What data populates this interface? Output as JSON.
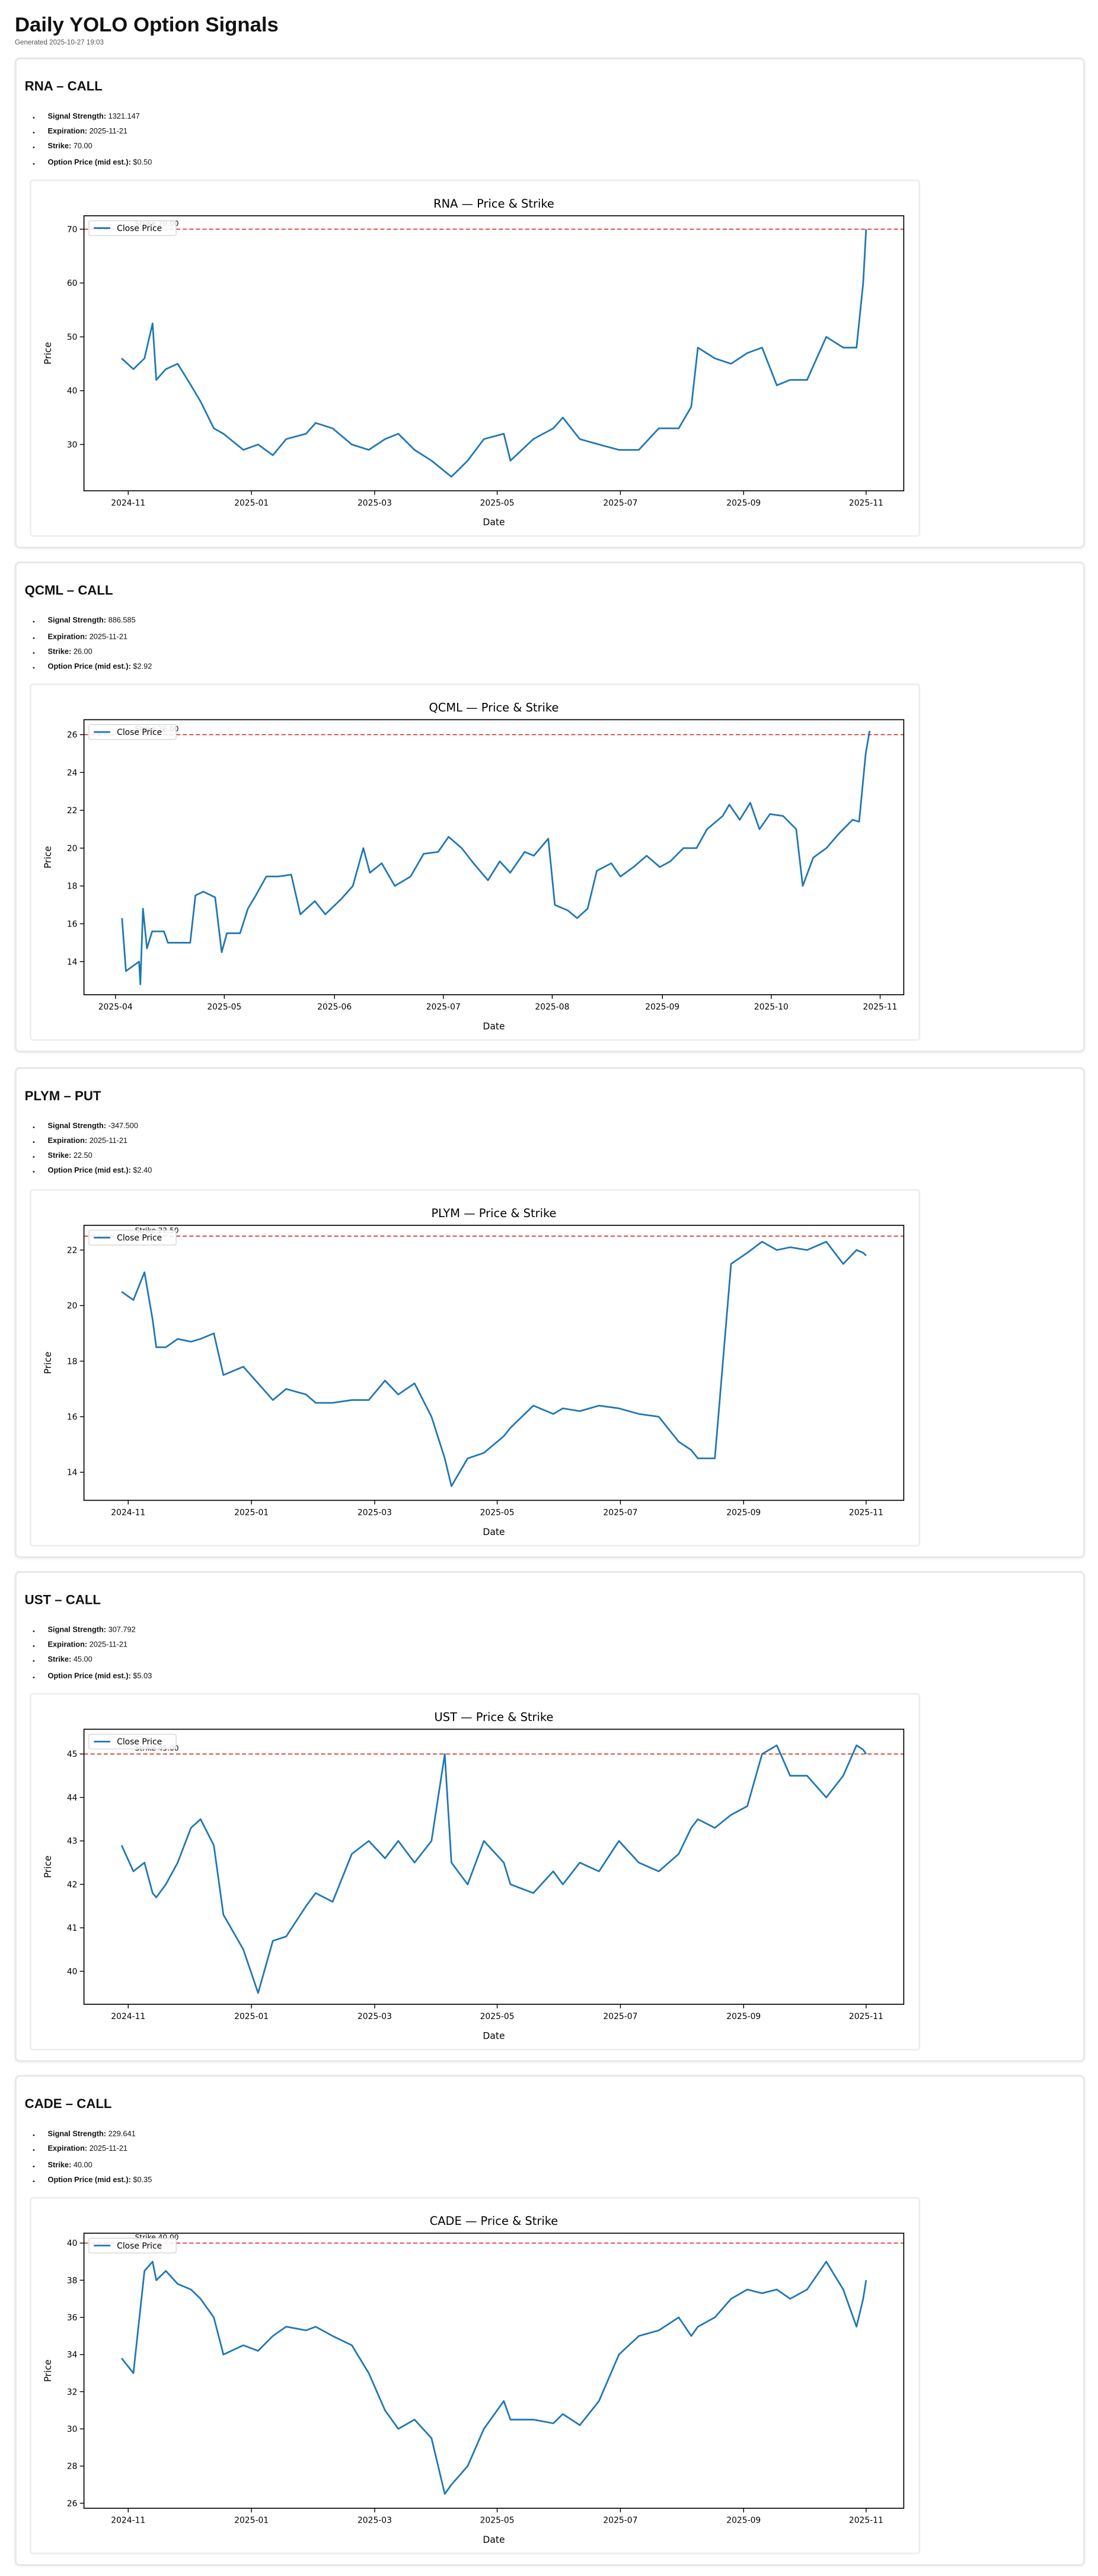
{
  "header": {
    "title": "Daily YOLO Option Signals",
    "generated": "Generated 2025-10-27 19:03"
  },
  "signals": [
    {
      "heading": "RNA – CALL",
      "details": [
        {
          "label": "Signal Strength:",
          "value": "1321.147"
        },
        {
          "label": "Expiration:",
          "value": "2025-11-21"
        },
        {
          "label": "Strike:",
          "value": "70.00"
        },
        {
          "label": "Option Price (mid est.):",
          "value": "$0.50"
        }
      ]
    },
    {
      "heading": "QCML – CALL",
      "details": [
        {
          "label": "Signal Strength:",
          "value": "886.585"
        },
        {
          "label": "Expiration:",
          "value": "2025-11-21"
        },
        {
          "label": "Strike:",
          "value": "26.00"
        },
        {
          "label": "Option Price (mid est.):",
          "value": "$2.92"
        }
      ]
    },
    {
      "heading": "PLYM – PUT",
      "details": [
        {
          "label": "Signal Strength:",
          "value": "-347.500"
        },
        {
          "label": "Expiration:",
          "value": "2025-11-21"
        },
        {
          "label": "Strike:",
          "value": "22.50"
        },
        {
          "label": "Option Price (mid est.):",
          "value": "$2.40"
        }
      ]
    },
    {
      "heading": "UST – CALL",
      "details": [
        {
          "label": "Signal Strength:",
          "value": "307.792"
        },
        {
          "label": "Expiration:",
          "value": "2025-11-21"
        },
        {
          "label": "Strike:",
          "value": "45.00"
        },
        {
          "label": "Option Price (mid est.):",
          "value": "$5.03"
        }
      ]
    },
    {
      "heading": "CADE – CALL",
      "details": [
        {
          "label": "Signal Strength:",
          "value": "229.641"
        },
        {
          "label": "Expiration:",
          "value": "2025-11-21"
        },
        {
          "label": "Strike:",
          "value": "40.00"
        },
        {
          "label": "Option Price (mid est.):",
          "value": "$0.35"
        }
      ]
    }
  ],
  "chart_data": [
    {
      "type": "line",
      "title": "RNA — Price & Strike",
      "xlabel": "Date",
      "ylabel": "Price",
      "legend": "upper left",
      "x": [
        2024.824,
        2024.84,
        2024.855,
        2024.866,
        2024.871,
        2024.884,
        2024.9,
        2024.918,
        2024.931,
        2024.949,
        2024.962,
        2024.989,
        2025.009,
        2025.029,
        2025.047,
        2025.074,
        2025.087,
        2025.11,
        2025.136,
        2025.159,
        2025.181,
        2025.199,
        2025.221,
        2025.244,
        2025.262,
        2025.271,
        2025.293,
        2025.315,
        2025.342,
        2025.351,
        2025.382,
        2025.409,
        2025.422,
        2025.445,
        2025.471,
        2025.498,
        2025.525,
        2025.552,
        2025.579,
        2025.596,
        2025.605,
        2025.628,
        2025.65,
        2025.672,
        2025.692,
        2025.712,
        2025.73,
        2025.753,
        2025.779,
        2025.802,
        2025.82,
        2025.829,
        2025.833
      ],
      "series": [
        {
          "name": "Close Price",
          "color": "#1f77b4",
          "values": [
            46,
            44,
            46,
            52.5,
            42,
            44,
            45,
            41,
            38,
            33,
            32,
            29,
            30,
            28,
            31,
            32,
            34,
            33,
            30,
            29,
            31,
            32,
            29,
            27,
            25,
            24,
            27,
            31,
            32,
            27,
            31,
            33,
            35,
            31,
            30,
            29,
            29,
            33,
            33,
            37,
            48,
            46,
            45,
            47,
            48,
            41,
            42,
            42,
            50,
            48,
            48,
            60,
            70
          ]
        }
      ],
      "hline": {
        "value": 70,
        "label": "Strike 70.00",
        "color": "#d62728"
      },
      "xlim": [
        2024.773,
        2025.884
      ],
      "ylim": [
        21.4,
        72.5
      ],
      "xticks": [
        {
          "value": 2024.833,
          "label": "2024-11"
        },
        {
          "value": 2025.0,
          "label": "2025-01"
        },
        {
          "value": 2025.167,
          "label": "2025-03"
        },
        {
          "value": 2025.333,
          "label": "2025-05"
        },
        {
          "value": 2025.5,
          "label": "2025-07"
        },
        {
          "value": 2025.667,
          "label": "2025-09"
        },
        {
          "value": 2025.833,
          "label": "2025-11"
        }
      ],
      "yticks": [
        30,
        40,
        50,
        60,
        70
      ]
    },
    {
      "type": "line",
      "title": "QCML — Price & Strike",
      "xlabel": "Date",
      "ylabel": "Price",
      "legend": "upper left",
      "x": [
        2025.255,
        2025.258,
        2025.264,
        2025.268,
        2025.269,
        2025.271,
        2025.274,
        2025.278,
        2025.287,
        2025.29,
        2025.299,
        2025.307,
        2025.311,
        2025.317,
        2025.326,
        2025.331,
        2025.335,
        2025.345,
        2025.351,
        2025.357,
        2025.365,
        2025.374,
        2025.384,
        2025.391,
        2025.402,
        2025.41,
        2025.422,
        2025.431,
        2025.439,
        2025.444,
        2025.453,
        2025.463,
        2025.475,
        2025.485,
        2025.496,
        2025.504,
        2025.514,
        2025.523,
        2025.534,
        2025.543,
        2025.551,
        2025.562,
        2025.569,
        2025.58,
        2025.585,
        2025.595,
        2025.602,
        2025.61,
        2025.617,
        2025.628,
        2025.635,
        2025.645,
        2025.655,
        2025.665,
        2025.673,
        2025.683,
        2025.693,
        2025.701,
        2025.713,
        2025.718,
        2025.726,
        2025.734,
        2025.741,
        2025.749,
        2025.759,
        2025.769,
        2025.774,
        2025.782,
        2025.792,
        2025.802,
        2025.812,
        2025.817,
        2025.822,
        2025.825
      ],
      "series": [
        {
          "name": "Close Price",
          "color": "#1f77b4",
          "values": [
            16.3,
            13.5,
            13.8,
            14.0,
            12.8,
            16.8,
            14.7,
            15.6,
            15.6,
            15.0,
            15.0,
            15.0,
            17.5,
            17.7,
            17.4,
            14.5,
            15.5,
            15.5,
            16.8,
            17.5,
            18.5,
            18.5,
            18.6,
            16.5,
            17.2,
            16.5,
            17.3,
            18.0,
            20.0,
            18.7,
            19.2,
            18.0,
            18.5,
            19.7,
            19.8,
            20.6,
            20.0,
            19.2,
            18.3,
            19.3,
            18.7,
            19.8,
            19.6,
            20.5,
            17.0,
            16.7,
            16.3,
            16.8,
            18.8,
            19.2,
            18.5,
            19.0,
            19.6,
            19.0,
            19.3,
            20.0,
            20.0,
            21.0,
            21.7,
            22.3,
            21.5,
            22.4,
            21.0,
            21.8,
            21.7,
            21.0,
            18.0,
            19.5,
            20.0,
            20.8,
            21.5,
            21.4,
            25.0,
            26.2
          ]
        }
      ],
      "hline": {
        "value": 26,
        "label": "Strike 26.00",
        "color": "#d62728"
      },
      "xlim": [
        2025.226,
        2025.851
      ],
      "ylim": [
        12.25,
        26.79
      ],
      "xticks": [
        {
          "value": 2025.25,
          "label": "2025-04"
        },
        {
          "value": 2025.333,
          "label": "2025-05"
        },
        {
          "value": 2025.417,
          "label": "2025-06"
        },
        {
          "value": 2025.5,
          "label": "2025-07"
        },
        {
          "value": 2025.583,
          "label": "2025-08"
        },
        {
          "value": 2025.667,
          "label": "2025-09"
        },
        {
          "value": 2025.75,
          "label": "2025-10"
        },
        {
          "value": 2025.833,
          "label": "2025-11"
        }
      ],
      "yticks": [
        14,
        16,
        18,
        20,
        22,
        24,
        26
      ]
    },
    {
      "type": "line",
      "title": "PLYM — Price & Strike",
      "xlabel": "Date",
      "ylabel": "Price",
      "legend": "upper left",
      "x": [
        2024.824,
        2024.84,
        2024.855,
        2024.866,
        2024.871,
        2024.884,
        2024.9,
        2024.918,
        2024.931,
        2024.949,
        2024.962,
        2024.989,
        2025.009,
        2025.029,
        2025.047,
        2025.074,
        2025.087,
        2025.11,
        2025.136,
        2025.159,
        2025.181,
        2025.199,
        2025.221,
        2025.244,
        2025.262,
        2025.271,
        2025.293,
        2025.315,
        2025.342,
        2025.351,
        2025.382,
        2025.409,
        2025.422,
        2025.445,
        2025.471,
        2025.498,
        2025.525,
        2025.552,
        2025.579,
        2025.596,
        2025.605,
        2025.628,
        2025.65,
        2025.672,
        2025.692,
        2025.712,
        2025.73,
        2025.753,
        2025.779,
        2025.802,
        2025.82,
        2025.829,
        2025.833
      ],
      "series": [
        {
          "name": "Close Price",
          "color": "#1f77b4",
          "values": [
            20.5,
            20.2,
            21.2,
            19.5,
            18.5,
            18.5,
            18.8,
            18.7,
            18.8,
            19.0,
            17.5,
            17.8,
            17.2,
            16.6,
            17.0,
            16.8,
            16.5,
            16.5,
            16.6,
            16.6,
            17.3,
            16.8,
            17.2,
            16.0,
            14.5,
            13.5,
            14.5,
            14.7,
            15.3,
            15.6,
            16.4,
            16.1,
            16.3,
            16.2,
            16.4,
            16.3,
            16.1,
            16.0,
            15.1,
            14.8,
            14.5,
            14.5,
            21.5,
            21.9,
            22.3,
            22.0,
            22.1,
            22.0,
            22.3,
            21.5,
            22.0,
            21.9,
            21.8
          ]
        }
      ],
      "hline": {
        "value": 22.5,
        "label": "Strike 22.50",
        "color": "#d62728"
      },
      "xlim": [
        2024.773,
        2025.884
      ],
      "ylim": [
        12.99,
        22.89
      ],
      "xticks": [
        {
          "value": 2024.833,
          "label": "2024-11"
        },
        {
          "value": 2025.0,
          "label": "2025-01"
        },
        {
          "value": 2025.167,
          "label": "2025-03"
        },
        {
          "value": 2025.333,
          "label": "2025-05"
        },
        {
          "value": 2025.5,
          "label": "2025-07"
        },
        {
          "value": 2025.667,
          "label": "2025-09"
        },
        {
          "value": 2025.833,
          "label": "2025-11"
        }
      ],
      "yticks": [
        14,
        16,
        18,
        20,
        22
      ]
    },
    {
      "type": "line",
      "title": "UST — Price & Strike",
      "xlabel": "Date",
      "ylabel": "Price",
      "legend": "upper left",
      "x": [
        2024.824,
        2024.84,
        2024.855,
        2024.866,
        2024.871,
        2024.884,
        2024.9,
        2024.918,
        2024.931,
        2024.949,
        2024.962,
        2024.989,
        2025.009,
        2025.029,
        2025.047,
        2025.074,
        2025.087,
        2025.11,
        2025.136,
        2025.159,
        2025.181,
        2025.199,
        2025.221,
        2025.244,
        2025.262,
        2025.271,
        2025.293,
        2025.315,
        2025.342,
        2025.351,
        2025.382,
        2025.409,
        2025.422,
        2025.445,
        2025.471,
        2025.498,
        2025.525,
        2025.552,
        2025.579,
        2025.596,
        2025.605,
        2025.628,
        2025.65,
        2025.672,
        2025.692,
        2025.712,
        2025.73,
        2025.753,
        2025.779,
        2025.802,
        2025.82,
        2025.829,
        2025.833
      ],
      "series": [
        {
          "name": "Close Price",
          "color": "#1f77b4",
          "values": [
            42.9,
            42.3,
            42.5,
            41.8,
            41.7,
            42.0,
            42.5,
            43.3,
            43.5,
            42.9,
            41.3,
            40.5,
            39.5,
            40.7,
            40.8,
            41.5,
            41.8,
            41.6,
            42.7,
            43.0,
            42.6,
            43.0,
            42.5,
            43.0,
            45.0,
            42.5,
            42.0,
            43.0,
            42.5,
            42.0,
            41.8,
            42.3,
            42.0,
            42.5,
            42.3,
            43.0,
            42.5,
            42.3,
            42.7,
            43.3,
            43.5,
            43.3,
            43.6,
            43.8,
            45.0,
            45.2,
            44.5,
            44.5,
            44.0,
            44.5,
            45.2,
            45.1,
            45.0
          ]
        }
      ],
      "hline": {
        "value": 45,
        "label": "Strike 45.00",
        "color": "#d62728"
      },
      "xlim": [
        2024.773,
        2025.884
      ],
      "ylim": [
        39.24,
        45.57
      ],
      "xticks": [
        {
          "value": 2024.833,
          "label": "2024-11"
        },
        {
          "value": 2025.0,
          "label": "2025-01"
        },
        {
          "value": 2025.167,
          "label": "2025-03"
        },
        {
          "value": 2025.333,
          "label": "2025-05"
        },
        {
          "value": 2025.5,
          "label": "2025-07"
        },
        {
          "value": 2025.667,
          "label": "2025-09"
        },
        {
          "value": 2025.833,
          "label": "2025-11"
        }
      ],
      "yticks": [
        40,
        41,
        42,
        43,
        44,
        45
      ]
    },
    {
      "type": "line",
      "title": "CADE — Price & Strike",
      "xlabel": "Date",
      "ylabel": "Price",
      "legend": "upper left",
      "x": [
        2024.824,
        2024.84,
        2024.855,
        2024.866,
        2024.871,
        2024.884,
        2024.9,
        2024.918,
        2024.931,
        2024.949,
        2024.962,
        2024.989,
        2025.009,
        2025.029,
        2025.047,
        2025.074,
        2025.087,
        2025.11,
        2025.136,
        2025.159,
        2025.181,
        2025.199,
        2025.221,
        2025.244,
        2025.262,
        2025.271,
        2025.293,
        2025.315,
        2025.342,
        2025.351,
        2025.382,
        2025.409,
        2025.422,
        2025.445,
        2025.471,
        2025.498,
        2025.525,
        2025.552,
        2025.579,
        2025.596,
        2025.605,
        2025.628,
        2025.65,
        2025.672,
        2025.692,
        2025.712,
        2025.73,
        2025.753,
        2025.779,
        2025.802,
        2025.82,
        2025.829,
        2025.833
      ],
      "series": [
        {
          "name": "Close Price",
          "color": "#1f77b4",
          "values": [
            33.8,
            33.0,
            38.5,
            39.0,
            38.0,
            38.5,
            37.8,
            37.5,
            37.0,
            36.0,
            34.0,
            34.5,
            34.2,
            35.0,
            35.5,
            35.3,
            35.5,
            35.0,
            34.5,
            33.0,
            31.0,
            30.0,
            30.5,
            29.5,
            26.5,
            27.0,
            28.0,
            30.0,
            31.5,
            30.5,
            30.5,
            30.3,
            30.8,
            30.2,
            31.5,
            34.0,
            35.0,
            35.3,
            36.0,
            35.0,
            35.5,
            36.0,
            37.0,
            37.5,
            37.3,
            37.5,
            37.0,
            37.5,
            39.0,
            37.5,
            35.5,
            37.0,
            38.0
          ]
        }
      ],
      "hline": {
        "value": 40,
        "label": "Strike 40.00",
        "color": "#d62728"
      },
      "xlim": [
        2024.773,
        2025.884
      ],
      "ylim": [
        25.73,
        40.53
      ],
      "xticks": [
        {
          "value": 2024.833,
          "label": "2024-11"
        },
        {
          "value": 2025.0,
          "label": "2025-01"
        },
        {
          "value": 2025.167,
          "label": "2025-03"
        },
        {
          "value": 2025.333,
          "label": "2025-05"
        },
        {
          "value": 2025.5,
          "label": "2025-07"
        },
        {
          "value": 2025.667,
          "label": "2025-09"
        },
        {
          "value": 2025.833,
          "label": "2025-11"
        }
      ],
      "yticks": [
        26,
        28,
        30,
        32,
        34,
        36,
        38,
        40
      ]
    }
  ]
}
